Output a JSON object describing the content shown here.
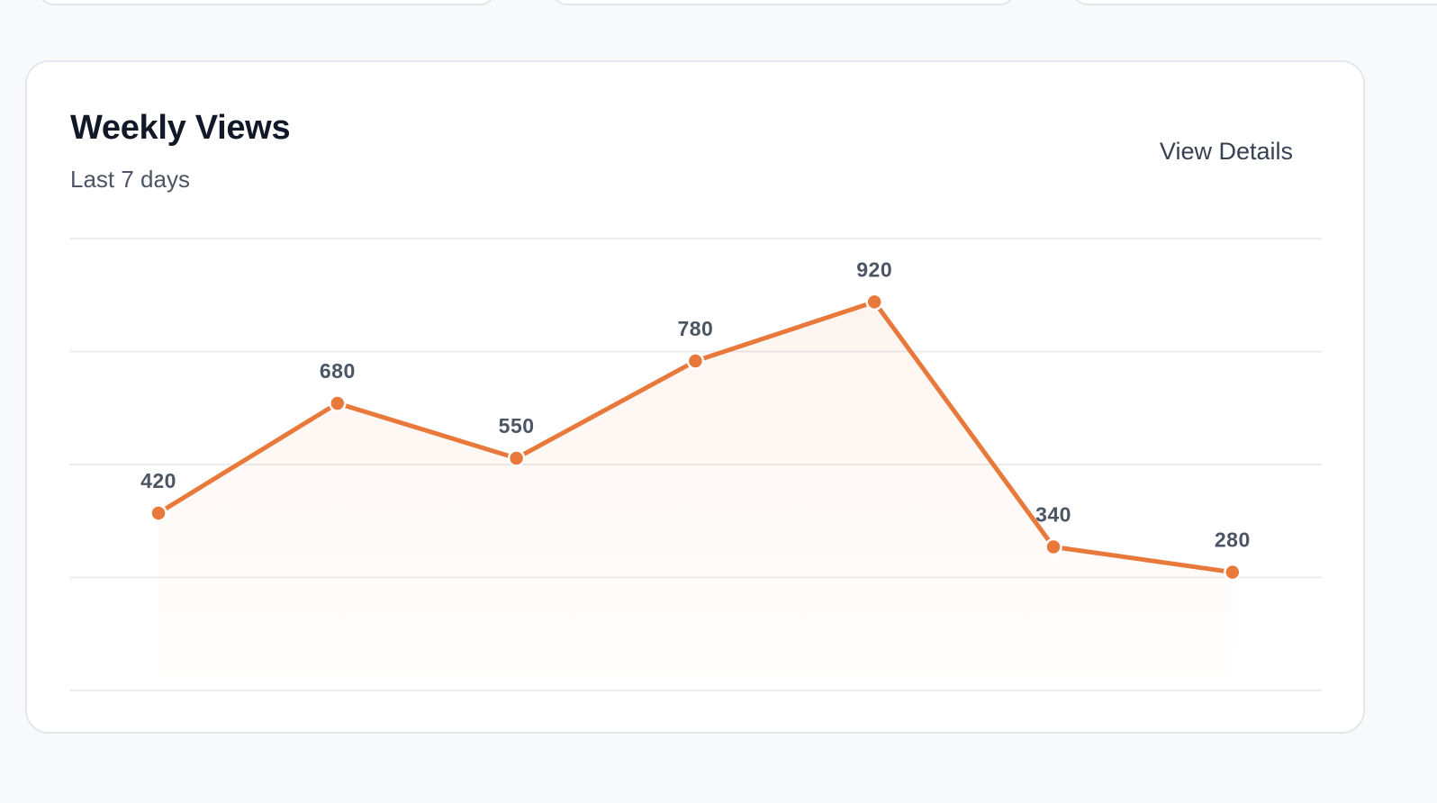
{
  "card": {
    "title": "Weekly Views",
    "subtitle": "Last 7 days",
    "action_label": "View Details"
  },
  "colors": {
    "accent": "#e8793a",
    "grid": "#e5e7eb",
    "label": "#4b5563"
  },
  "chart_data": {
    "type": "line",
    "title": "",
    "xlabel": "",
    "ylabel": "",
    "categories": [
      "",
      "",
      "",
      "",
      "",
      "",
      ""
    ],
    "values": [
      420,
      680,
      550,
      780,
      920,
      340,
      280
    ],
    "data_labels": [
      "420",
      "680",
      "550",
      "780",
      "920",
      "340",
      "280"
    ],
    "ylim": [
      0,
      1070
    ],
    "grid": true,
    "legend": "none"
  }
}
